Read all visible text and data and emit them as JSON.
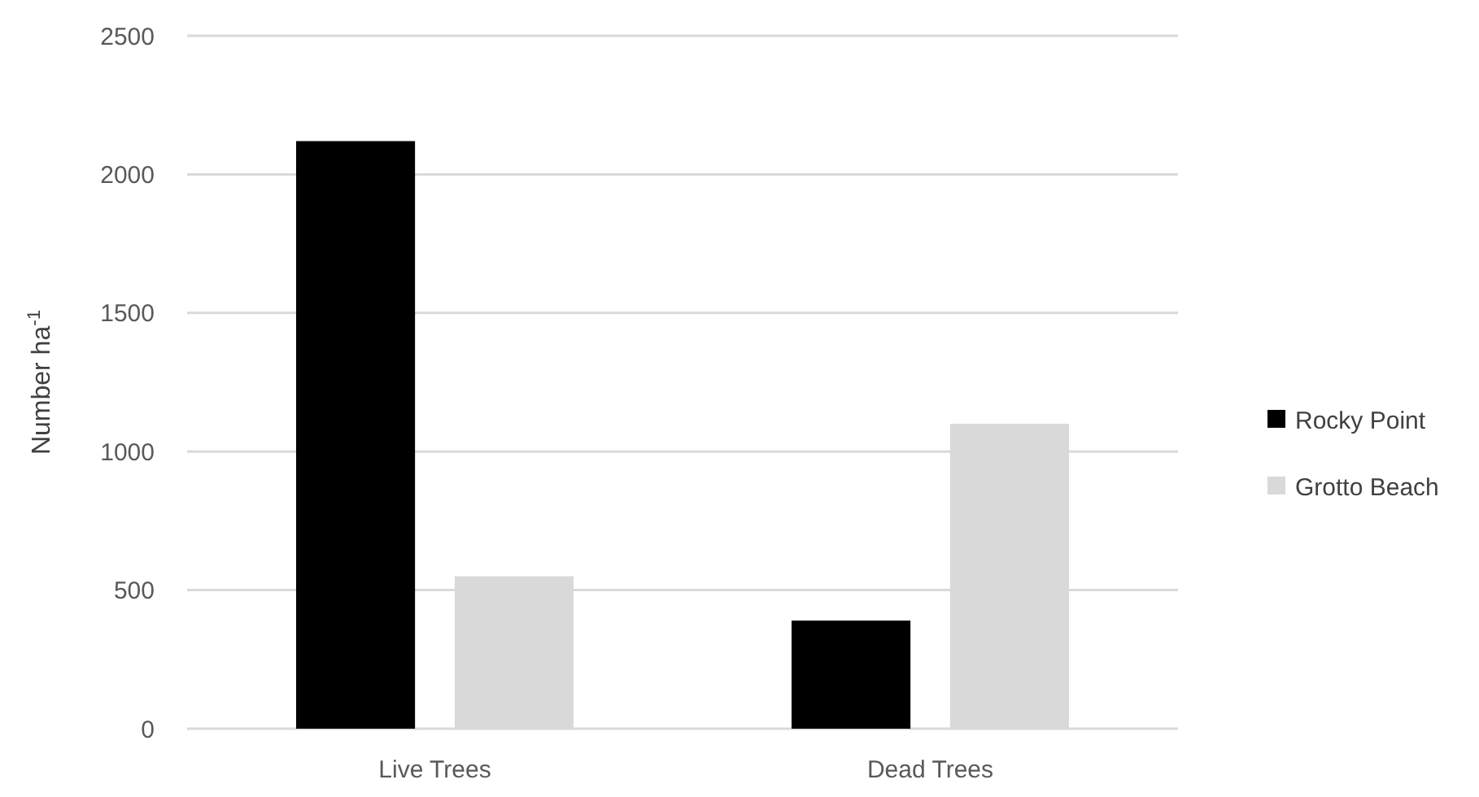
{
  "chart_data": {
    "type": "bar",
    "ylabel": "Number  ha$^{-1}$",
    "categories": [
      "Live Trees",
      "Dead Trees"
    ],
    "series": [
      {
        "name": "Rocky Point",
        "color": "#000000",
        "values": [
          2120,
          390
        ]
      },
      {
        "name": "Grotto Beach",
        "color": "#d9d9d9",
        "values": [
          550,
          1100
        ]
      }
    ],
    "ylim": [
      0,
      2500
    ],
    "yticks": [
      0,
      500,
      1000,
      1500,
      2000,
      2500
    ],
    "grid": "y",
    "legend": "right"
  }
}
